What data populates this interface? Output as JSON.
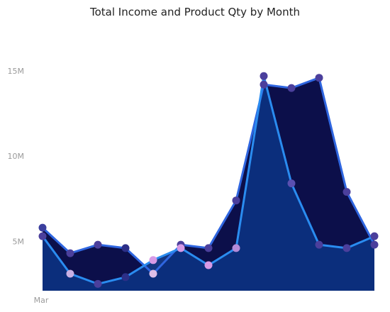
{
  "chart_data": {
    "type": "area",
    "title": "Total Income and Product Qty by Month",
    "xlabel": "",
    "ylabel": "",
    "categories": [
      "Mar",
      "",
      "",
      "",
      "",
      "",
      "",
      "",
      "",
      "",
      "",
      "",
      ""
    ],
    "y_ticks": [
      {
        "value": 5,
        "label": "5M"
      },
      {
        "value": 10,
        "label": "10M"
      },
      {
        "value": 15,
        "label": "15M"
      }
    ],
    "ylim": [
      2.1,
      17.5
    ],
    "grid": false,
    "legend": "none",
    "series": [
      {
        "values": [
          5.8,
          4.3,
          4.8,
          4.6,
          3.1,
          4.8,
          4.6,
          7.4,
          14.2,
          14.0,
          14.6,
          7.9,
          4.8
        ],
        "line_color": "#2f66e0",
        "fill_color": "#0c0f4a",
        "marker_colors": [
          "#3b3f9e",
          "#4b3f9c",
          "#4b3f9c",
          "#2c2f88",
          "#ddbfe8",
          "#4b3f9c",
          "#4b3f9c",
          "#4b3f9c",
          "#4b3f9c",
          "#4b3f9c",
          "#4b3f9c",
          "#4b3f9c",
          "#4b3f9c"
        ]
      },
      {
        "values": [
          5.3,
          3.1,
          2.5,
          2.9,
          3.9,
          4.6,
          3.6,
          4.6,
          14.7,
          8.4,
          4.8,
          4.6,
          5.3
        ],
        "line_color": "#2a8cf0",
        "fill_color": "#0b2f7e",
        "marker_colors": [
          "#4b3f9c",
          "#c9b0e4",
          "#4b3f9c",
          "#2c2f88",
          "#d79ae6",
          "#d79ae6",
          "#d79ae6",
          "#b48ad8",
          "#4b3f9c",
          "#5a4fb0",
          "#4b3f9c",
          "#4b3f9c",
          "#4b3f9c"
        ]
      }
    ]
  }
}
